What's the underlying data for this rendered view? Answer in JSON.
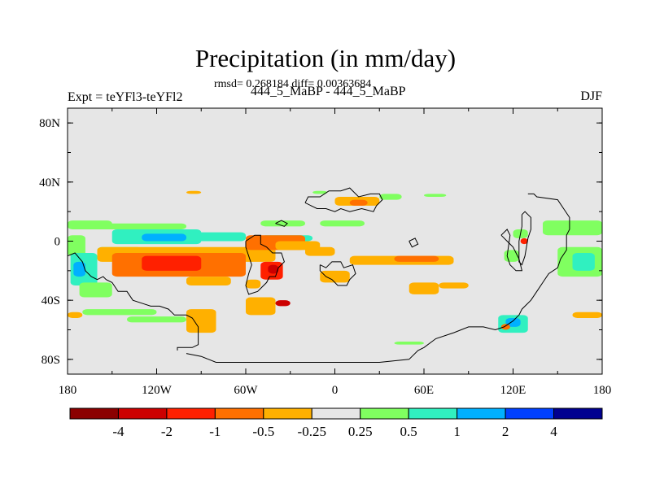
{
  "title": "Precipitation (in mm/day)",
  "stats": "rmsd= 0.268184 diff= 0.00363684",
  "left_label": "Expt = teYFl3-teYFl2",
  "center_label": "444_5_MaBP - 444_5_MaBP",
  "right_label": "DJF",
  "chart_data": {
    "type": "heatmap",
    "title": "Precipitation (in mm/day)",
    "projection": "cylindrical equidistant",
    "xlim": [
      -180,
      180
    ],
    "ylim": [
      -90,
      90
    ],
    "xticks": [
      {
        "value": -180,
        "label": "180"
      },
      {
        "value": -120,
        "label": "120W"
      },
      {
        "value": -60,
        "label": "60W"
      },
      {
        "value": 0,
        "label": "0"
      },
      {
        "value": 60,
        "label": "60E"
      },
      {
        "value": 120,
        "label": "120E"
      },
      {
        "value": 180,
        "label": "180"
      }
    ],
    "yticks": [
      {
        "value": 80,
        "label": "80N"
      },
      {
        "value": 40,
        "label": "40N"
      },
      {
        "value": 0,
        "label": "0"
      },
      {
        "value": -40,
        "label": "40S"
      },
      {
        "value": -80,
        "label": "80S"
      }
    ],
    "background_color": "#e6e6e6",
    "colorbar": {
      "levels": [
        "-4",
        "-2",
        "-1",
        "-0.5",
        "-0.25",
        "0.25",
        "0.5",
        "1",
        "2",
        "4"
      ],
      "colors": [
        "#8b0000",
        "#cc0000",
        "#ff2000",
        "#ff7000",
        "#ffb000",
        "#e6e6e6",
        "#80ff60",
        "#30f0c0",
        "#00b0ff",
        "#0040ff",
        "#000090"
      ]
    },
    "regions": [
      {
        "lon": [
          -180,
          -150
        ],
        "lat": [
          8,
          14
        ],
        "color": "#80ff60"
      },
      {
        "lon": [
          -160,
          -100
        ],
        "lat": [
          8,
          12
        ],
        "color": "#80ff60"
      },
      {
        "lon": [
          -150,
          -90
        ],
        "lat": [
          -2,
          8
        ],
        "color": "#30f0c0"
      },
      {
        "lon": [
          -130,
          -100
        ],
        "lat": [
          0,
          5
        ],
        "color": "#00b0ff"
      },
      {
        "lon": [
          -100,
          -60
        ],
        "lat": [
          0,
          6
        ],
        "color": "#30f0c0"
      },
      {
        "lon": [
          -160,
          -130
        ],
        "lat": [
          -8,
          -4
        ],
        "color": "#80ff60"
      },
      {
        "lon": [
          -180,
          -168
        ],
        "lat": [
          -10,
          4
        ],
        "color": "#80ff60"
      },
      {
        "lon": [
          -178,
          -160
        ],
        "lat": [
          -30,
          -8
        ],
        "color": "#30f0c0"
      },
      {
        "lon": [
          -176,
          -168
        ],
        "lat": [
          -24,
          -14
        ],
        "color": "#00b0ff"
      },
      {
        "lon": [
          -172,
          -150
        ],
        "lat": [
          -38,
          -28
        ],
        "color": "#80ff60"
      },
      {
        "lon": [
          -50,
          -20
        ],
        "lat": [
          10,
          14
        ],
        "color": "#80ff60"
      },
      {
        "lon": [
          -50,
          -15
        ],
        "lat": [
          0,
          4
        ],
        "color": "#30f0c0"
      },
      {
        "lon": [
          -170,
          -120
        ],
        "lat": [
          -50,
          -46
        ],
        "color": "#80ff60"
      },
      {
        "lon": [
          -140,
          -100
        ],
        "lat": [
          -55,
          -51
        ],
        "color": "#80ff60"
      },
      {
        "lon": [
          -180,
          -170
        ],
        "lat": [
          -52,
          -48
        ],
        "color": "#ffb000"
      },
      {
        "lon": [
          -160,
          -40
        ],
        "lat": [
          -14,
          -4
        ],
        "color": "#ffb000"
      },
      {
        "lon": [
          -150,
          -60
        ],
        "lat": [
          -24,
          -8
        ],
        "color": "#ff7000"
      },
      {
        "lon": [
          -130,
          -90
        ],
        "lat": [
          -20,
          -10
        ],
        "color": "#ff2000"
      },
      {
        "lon": [
          -110,
          -100
        ],
        "lat": [
          -18,
          -12
        ],
        "color": "#ff2000"
      },
      {
        "lon": [
          -60,
          -20
        ],
        "lat": [
          -6,
          4
        ],
        "color": "#ff7000"
      },
      {
        "lon": [
          -40,
          -10
        ],
        "lat": [
          -6,
          0
        ],
        "color": "#ffb000"
      },
      {
        "lon": [
          -100,
          -70
        ],
        "lat": [
          -30,
          -24
        ],
        "color": "#ffb000"
      },
      {
        "lon": [
          -50,
          -35
        ],
        "lat": [
          -26,
          -14
        ],
        "color": "#ff2000"
      },
      {
        "lon": [
          -45,
          -38
        ],
        "lat": [
          -22,
          -16
        ],
        "color": "#cc0000"
      },
      {
        "lon": [
          -60,
          -50
        ],
        "lat": [
          -32,
          -26
        ],
        "color": "#ffb000"
      },
      {
        "lon": [
          -20,
          0
        ],
        "lat": [
          -10,
          -4
        ],
        "color": "#ffb000"
      },
      {
        "lon": [
          10,
          80
        ],
        "lat": [
          -16,
          -10
        ],
        "color": "#ffb000"
      },
      {
        "lon": [
          40,
          70
        ],
        "lat": [
          -14,
          -10
        ],
        "color": "#ff7000"
      },
      {
        "lon": [
          -10,
          10
        ],
        "lat": [
          -28,
          -20
        ],
        "color": "#ffb000"
      },
      {
        "lon": [
          -60,
          -40
        ],
        "lat": [
          -50,
          -38
        ],
        "color": "#ffb000"
      },
      {
        "lon": [
          -40,
          -30
        ],
        "lat": [
          -44,
          -40
        ],
        "color": "#cc0000"
      },
      {
        "lon": [
          -100,
          -80
        ],
        "lat": [
          -62,
          -46
        ],
        "color": "#ffb000"
      },
      {
        "lon": [
          50,
          70
        ],
        "lat": [
          -36,
          -28
        ],
        "color": "#ffb000"
      },
      {
        "lon": [
          70,
          90
        ],
        "lat": [
          -32,
          -28
        ],
        "color": "#ffb000"
      },
      {
        "lon": [
          0,
          30
        ],
        "lat": [
          24,
          30
        ],
        "color": "#ffb000"
      },
      {
        "lon": [
          10,
          22
        ],
        "lat": [
          24,
          28
        ],
        "color": "#ff7000"
      },
      {
        "lon": [
          -100,
          -90
        ],
        "lat": [
          32,
          34
        ],
        "color": "#ffb000"
      },
      {
        "lon": [
          -15,
          -5
        ],
        "lat": [
          32,
          34
        ],
        "color": "#80ff60"
      },
      {
        "lon": [
          30,
          45
        ],
        "lat": [
          28,
          32
        ],
        "color": "#80ff60"
      },
      {
        "lon": [
          60,
          75
        ],
        "lat": [
          30,
          32
        ],
        "color": "#80ff60"
      },
      {
        "lon": [
          -10,
          20
        ],
        "lat": [
          10,
          14
        ],
        "color": "#80ff60"
      },
      {
        "lon": [
          140,
          180
        ],
        "lat": [
          4,
          14
        ],
        "color": "#80ff60"
      },
      {
        "lon": [
          120,
          130
        ],
        "lat": [
          2,
          8
        ],
        "color": "#80ff60"
      },
      {
        "lon": [
          125,
          130
        ],
        "lat": [
          -2,
          2
        ],
        "color": "#ff2000"
      },
      {
        "lon": [
          114,
          124
        ],
        "lat": [
          -14,
          -6
        ],
        "color": "#80ff60"
      },
      {
        "lon": [
          150,
          180
        ],
        "lat": [
          -24,
          -4
        ],
        "color": "#80ff60"
      },
      {
        "lon": [
          160,
          175
        ],
        "lat": [
          -20,
          -8
        ],
        "color": "#30f0c0"
      },
      {
        "lon": [
          110,
          130
        ],
        "lat": [
          -62,
          -50
        ],
        "color": "#30f0c0"
      },
      {
        "lon": [
          115,
          125
        ],
        "lat": [
          -58,
          -52
        ],
        "color": "#00b0ff"
      },
      {
        "lon": [
          112,
          118
        ],
        "lat": [
          -60,
          -56
        ],
        "color": "#ff7000"
      },
      {
        "lon": [
          160,
          180
        ],
        "lat": [
          -52,
          -48
        ],
        "color": "#ffb000"
      },
      {
        "lon": [
          40,
          60
        ],
        "lat": [
          -70,
          -68
        ],
        "color": "#80ff60"
      }
    ],
    "coastlines": [
      [
        [
          -180,
          -10
        ],
        [
          -175,
          -8
        ],
        [
          -170,
          -14
        ],
        [
          -168,
          -20
        ],
        [
          -164,
          -24
        ],
        [
          -160,
          -26
        ],
        [
          -156,
          -24
        ],
        [
          -154,
          -26
        ],
        [
          -150,
          -28
        ],
        [
          -146,
          -34
        ],
        [
          -140,
          -34
        ],
        [
          -136,
          -40
        ],
        [
          -130,
          -42
        ],
        [
          -124,
          -44
        ],
        [
          -118,
          -44
        ],
        [
          -112,
          -46
        ],
        [
          -108,
          -50
        ],
        [
          -100,
          -50
        ],
        [
          -96,
          -52
        ],
        [
          -92,
          -58
        ],
        [
          -92,
          -70
        ],
        [
          -96,
          -72
        ],
        [
          -106,
          -72
        ],
        [
          -106,
          -74
        ]
      ],
      [
        [
          -100,
          -76
        ],
        [
          -90,
          -78
        ],
        [
          -80,
          -82
        ],
        [
          -70,
          -82
        ],
        [
          -40,
          -82
        ],
        [
          0,
          -82
        ],
        [
          30,
          -82
        ],
        [
          50,
          -80
        ],
        [
          56,
          -74
        ],
        [
          60,
          -72
        ],
        [
          68,
          -66
        ],
        [
          80,
          -62
        ],
        [
          90,
          -58
        ],
        [
          100,
          -58
        ],
        [
          108,
          -60
        ],
        [
          114,
          -58
        ],
        [
          120,
          -54
        ],
        [
          124,
          -50
        ],
        [
          126,
          -46
        ],
        [
          132,
          -40
        ],
        [
          136,
          -34
        ],
        [
          140,
          -28
        ],
        [
          144,
          -22
        ],
        [
          150,
          -18
        ],
        [
          152,
          -12
        ],
        [
          156,
          -6
        ],
        [
          156,
          4
        ],
        [
          158,
          8
        ],
        [
          158,
          16
        ],
        [
          154,
          22
        ],
        [
          150,
          28
        ],
        [
          136,
          30
        ],
        [
          134,
          32
        ],
        [
          130,
          32
        ]
      ],
      [
        [
          -60,
          0
        ],
        [
          -54,
          4
        ],
        [
          -50,
          4
        ],
        [
          -50,
          -2
        ],
        [
          -46,
          -4
        ],
        [
          -42,
          -8
        ],
        [
          -36,
          -8
        ],
        [
          -34,
          -14
        ],
        [
          -38,
          -18
        ],
        [
          -40,
          -24
        ],
        [
          -44,
          -24
        ],
        [
          -46,
          -28
        ],
        [
          -50,
          -32
        ],
        [
          -52,
          -34
        ],
        [
          -58,
          -36
        ],
        [
          -60,
          -30
        ],
        [
          -58,
          -22
        ],
        [
          -56,
          -16
        ],
        [
          -58,
          -10
        ],
        [
          -60,
          -4
        ],
        [
          -60,
          0
        ]
      ],
      [
        [
          -20,
          26
        ],
        [
          -18,
          30
        ],
        [
          -10,
          30
        ],
        [
          -4,
          34
        ],
        [
          4,
          34
        ],
        [
          10,
          36
        ],
        [
          16,
          30
        ],
        [
          24,
          32
        ],
        [
          30,
          32
        ],
        [
          32,
          28
        ],
        [
          28,
          24
        ],
        [
          26,
          20
        ],
        [
          18,
          22
        ],
        [
          10,
          20
        ],
        [
          4,
          22
        ],
        [
          0,
          20
        ],
        [
          -6,
          22
        ],
        [
          -12,
          22
        ],
        [
          -20,
          26
        ]
      ],
      [
        [
          -10,
          -16
        ],
        [
          -6,
          -18
        ],
        [
          -2,
          -14
        ],
        [
          4,
          -14
        ],
        [
          6,
          -18
        ],
        [
          12,
          -16
        ],
        [
          14,
          -22
        ],
        [
          10,
          -26
        ],
        [
          8,
          -30
        ],
        [
          2,
          -30
        ],
        [
          -2,
          -26
        ],
        [
          -6,
          -24
        ],
        [
          -10,
          -20
        ],
        [
          -10,
          -16
        ]
      ],
      [
        [
          -40,
          12
        ],
        [
          -36,
          14
        ],
        [
          -32,
          12
        ],
        [
          -34,
          10
        ],
        [
          -40,
          12
        ]
      ],
      [
        [
          50,
          0
        ],
        [
          54,
          2
        ],
        [
          56,
          -2
        ],
        [
          52,
          -4
        ],
        [
          50,
          0
        ]
      ],
      [
        [
          112,
          4
        ],
        [
          116,
          8
        ],
        [
          118,
          4
        ],
        [
          116,
          -10
        ],
        [
          118,
          -16
        ],
        [
          122,
          -20
        ],
        [
          126,
          -20
        ],
        [
          124,
          -12
        ],
        [
          120,
          -4
        ],
        [
          116,
          0
        ],
        [
          112,
          4
        ]
      ],
      [
        [
          126,
          18
        ],
        [
          128,
          20
        ],
        [
          132,
          16
        ],
        [
          132,
          8
        ],
        [
          130,
          2
        ],
        [
          128,
          -10
        ],
        [
          126,
          -16
        ],
        [
          124,
          -14
        ],
        [
          124,
          0
        ],
        [
          126,
          10
        ],
        [
          126,
          18
        ]
      ]
    ]
  }
}
